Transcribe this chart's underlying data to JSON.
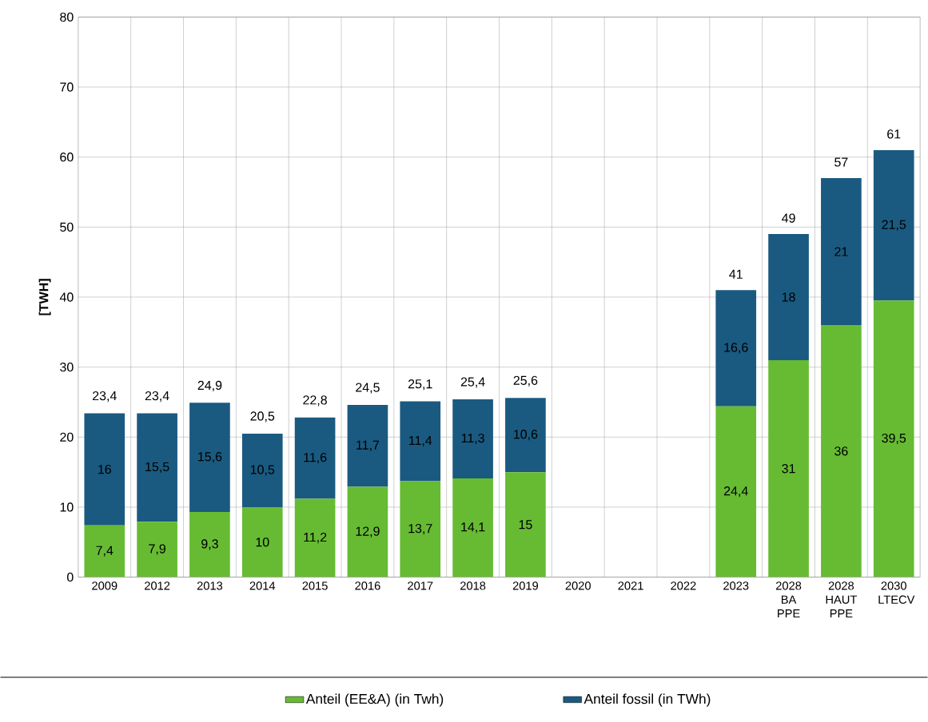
{
  "chart_data": {
    "type": "bar",
    "stacked": true,
    "ylabel": "[TWH]",
    "categories": [
      "2009",
      "2012",
      "2013",
      "2014",
      "2015",
      "2016",
      "2017",
      "2018",
      "2019",
      "2020",
      "2021",
      "2022",
      "2023",
      "2028 BA PPE",
      "2028 HAUT PPE",
      "2030 LTECV"
    ],
    "series": [
      {
        "name": "Anteil (EE&A) (in Twh)",
        "color": "#66bb33",
        "values": [
          7.4,
          7.9,
          9.3,
          10,
          11.2,
          12.9,
          13.7,
          14.1,
          15,
          null,
          null,
          null,
          24.4,
          31,
          36,
          39.5
        ],
        "value_labels": [
          "7,4",
          "7,9",
          "9,3",
          "10",
          "11,2",
          "12,9",
          "13,7",
          "14,1",
          "15",
          null,
          null,
          null,
          "24,4",
          "31",
          "36",
          "39,5"
        ]
      },
      {
        "name": "Anteil fossil (in TWh)",
        "color": "#1a5a80",
        "values": [
          16,
          15.5,
          15.6,
          10.5,
          11.6,
          11.7,
          11.4,
          11.3,
          10.6,
          null,
          null,
          null,
          16.6,
          18,
          21,
          21.5
        ],
        "value_labels": [
          "16",
          "15,5",
          "15,6",
          "10,5",
          "11,6",
          "11,7",
          "11,4",
          "11,3",
          "10,6",
          null,
          null,
          null,
          "16,6",
          "18",
          "21",
          "21,5"
        ]
      }
    ],
    "totals": [
      "23,4",
      "23,4",
      "24,9",
      "20,5",
      "22,8",
      "24,5",
      "25,1",
      "25,4",
      "25,6",
      null,
      null,
      null,
      "41",
      "49",
      "57",
      "61"
    ],
    "ylim": [
      0,
      80
    ],
    "yticks": [
      0,
      10,
      20,
      30,
      40,
      50,
      60,
      70,
      80
    ],
    "grid": true,
    "legend": "bottom"
  }
}
